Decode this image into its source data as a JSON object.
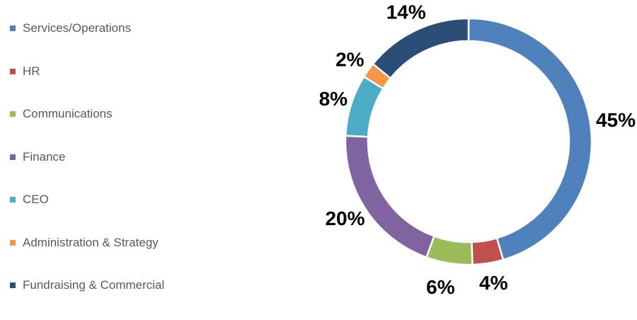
{
  "chart_data": {
    "type": "pie",
    "variant": "doughnut",
    "categories": [
      "Services/Operations",
      "HR",
      "Communications",
      "Finance",
      "CEO",
      "Administration & Strategy",
      "Fundraising & Commercial"
    ],
    "values": [
      45,
      4,
      6,
      20,
      8,
      2,
      14
    ],
    "labels": [
      "45%",
      "4%",
      "6%",
      "20%",
      "8%",
      "2%",
      "14%"
    ],
    "colors": [
      "#4F81BD",
      "#C0504D",
      "#9BBB59",
      "#8064A2",
      "#4BACC6",
      "#F79646",
      "#2C4D75"
    ],
    "legend_position": "left",
    "title": ""
  }
}
